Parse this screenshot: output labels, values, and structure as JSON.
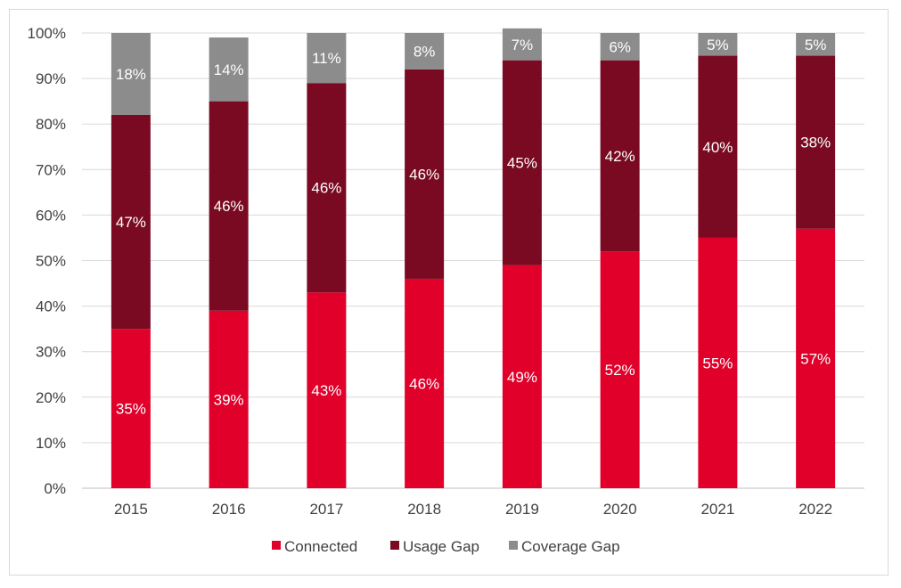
{
  "chart_data": {
    "type": "bar",
    "stacked": true,
    "percent": true,
    "categories": [
      "2015",
      "2016",
      "2017",
      "2018",
      "2019",
      "2020",
      "2021",
      "2022"
    ],
    "series": [
      {
        "name": "Connected",
        "color": "#e0002a",
        "label_color": "#ffffff",
        "values": [
          35,
          39,
          43,
          46,
          49,
          52,
          55,
          57
        ],
        "labels": [
          "35%",
          "39%",
          "43%",
          "46%",
          "49%",
          "52%",
          "55%",
          "57%"
        ]
      },
      {
        "name": "Usage Gap",
        "color": "#7a0a22",
        "label_color": "#ffffff",
        "values": [
          47,
          46,
          46,
          46,
          45,
          42,
          40,
          38
        ],
        "labels": [
          "47%",
          "46%",
          "46%",
          "46%",
          "45%",
          "42%",
          "40%",
          "38%"
        ]
      },
      {
        "name": "Coverage Gap",
        "color": "#8c8c8c",
        "label_color": "#ffffff",
        "values": [
          18,
          14,
          11,
          8,
          7,
          6,
          5,
          5
        ],
        "labels": [
          "18%",
          "14%",
          "11%",
          "8%",
          "7%",
          "6%",
          "5%",
          "5%"
        ]
      }
    ],
    "ylim": [
      0,
      100
    ],
    "yticks": [
      "0%",
      "10%",
      "20%",
      "30%",
      "40%",
      "50%",
      "60%",
      "70%",
      "80%",
      "90%",
      "100%"
    ],
    "grid": true,
    "legend_position": "bottom",
    "title": "",
    "xlabel": "",
    "ylabel": ""
  }
}
